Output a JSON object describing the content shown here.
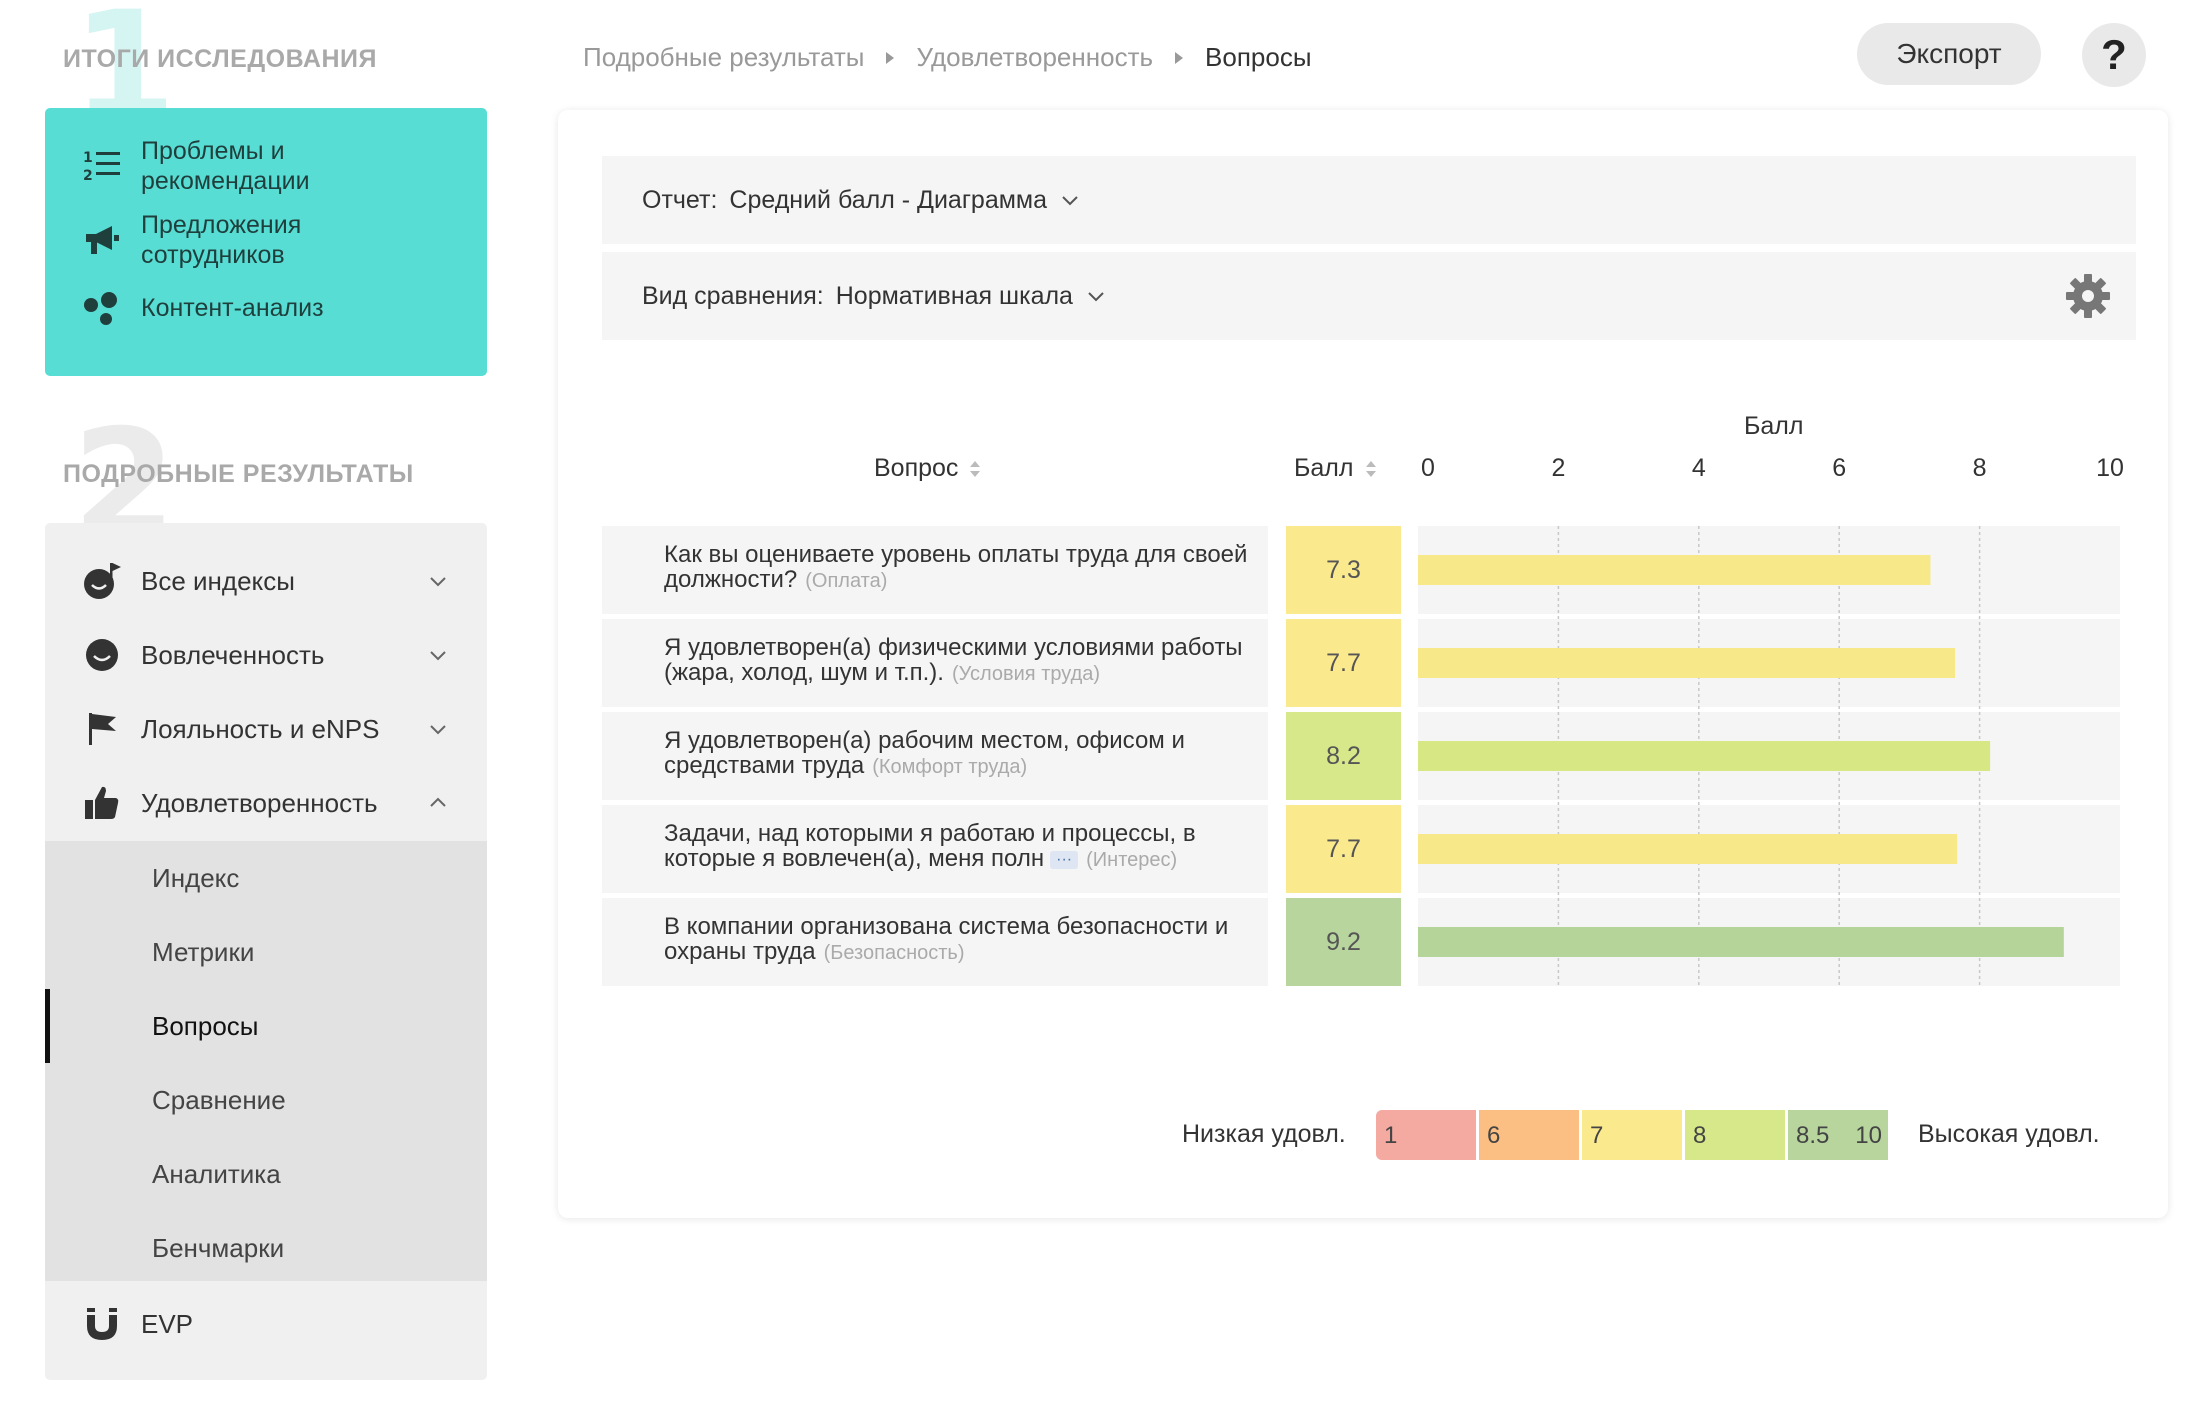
{
  "sidebar": {
    "section1": {
      "number": "1",
      "title": "ИТОГИ ИССЛЕДОВАНИЯ"
    },
    "section1_items": [
      {
        "label": "Проблемы и рекомендации",
        "icon": "numbered-list-icon"
      },
      {
        "label": "Предложения сотрудников",
        "icon": "megaphone-icon"
      },
      {
        "label": "Контент-анализ",
        "icon": "bubbles-icon"
      }
    ],
    "section2": {
      "number": "2",
      "title": "ПОДРОБНЫЕ РЕЗУЛЬТАТЫ"
    },
    "section2_items": [
      {
        "label": "Все индексы",
        "icon": "smiley-flag-icon",
        "expanded": false
      },
      {
        "label": "Вовлеченность",
        "icon": "smiley-icon",
        "expanded": false
      },
      {
        "label": "Лояльность и eNPS",
        "icon": "flag-icon",
        "expanded": false
      },
      {
        "label": "Удовлетворенность",
        "icon": "thumbs-up-icon",
        "expanded": true
      }
    ],
    "sub_items": [
      {
        "label": "Индекс",
        "active": false
      },
      {
        "label": "Метрики",
        "active": false
      },
      {
        "label": "Вопросы",
        "active": true
      },
      {
        "label": "Сравнение",
        "active": false
      },
      {
        "label": "Аналитика",
        "active": false
      },
      {
        "label": "Бенчмарки",
        "active": false
      }
    ],
    "evp": {
      "label": "EVP",
      "icon": "magnet-icon"
    }
  },
  "header": {
    "breadcrumbs": [
      "Подробные результаты",
      "Удовлетворенность",
      "Вопросы"
    ],
    "export_label": "Экспорт",
    "help_label": "?"
  },
  "filters": {
    "report_key": "Отчет:",
    "report_value": "Средний балл - Диаграмма",
    "compare_key": "Вид сравнения:",
    "compare_value": "Нормативная шкала"
  },
  "table": {
    "col_question": "Вопрос",
    "col_score": "Балл",
    "more_label": "···"
  },
  "chart_data": {
    "type": "bar",
    "orientation": "horizontal",
    "title": "Балл",
    "xlim": [
      0,
      10
    ],
    "x_ticks": [
      "0",
      "2",
      "4",
      "6",
      "8",
      "10"
    ],
    "grid": true,
    "rows": [
      {
        "question": "Как вы оцениваете уровень оплаты труда для своей должности?",
        "category": "(Оплата)",
        "score_label": "7.3",
        "value": 7.3,
        "color": "#f7e889",
        "score_bg": "#fbe98e",
        "truncated": false
      },
      {
        "question": "Я удовлетворен(а) физическими условиями работы (жара, холод, шум и т.п.).",
        "category": "(Условия труда)",
        "score_label": "7.7",
        "value": 7.65,
        "color": "#f7e889",
        "score_bg": "#fbe98e",
        "truncated": false
      },
      {
        "question": "Я удовлетворен(а) рабочим местом, офисом и средствами труда",
        "category": "(Комфорт труда)",
        "score_label": "8.2",
        "value": 8.15,
        "color": "#d6e784",
        "score_bg": "#d7e88a",
        "truncated": false
      },
      {
        "question": "Задачи, над которыми я работаю и процессы, в которые я вовлечен(а), меня полн",
        "category": "(Интерес)",
        "score_label": "7.7",
        "value": 7.68,
        "color": "#f7e889",
        "score_bg": "#fbe98e",
        "truncated": true
      },
      {
        "question": "В компании организована система безопасности и охраны труда",
        "category": "(Безопасность)",
        "score_label": "9.2",
        "value": 9.2,
        "color": "#b5d49a",
        "score_bg": "#b7d59d",
        "truncated": false
      }
    ]
  },
  "legend": {
    "low_label": "Низкая удовл.",
    "high_label": "Высокая удовл.",
    "segments": [
      {
        "label": "1",
        "color": "#f4a9a1",
        "width": 100
      },
      {
        "label": "6",
        "color": "#fbbf84",
        "width": 100
      },
      {
        "label": "7",
        "color": "#fbe98e",
        "width": 100
      },
      {
        "label": "8",
        "color": "#d7e88a",
        "width": 100
      },
      {
        "label": "8.5",
        "label2": "10",
        "color": "#b7d59d",
        "width": 100
      }
    ]
  }
}
